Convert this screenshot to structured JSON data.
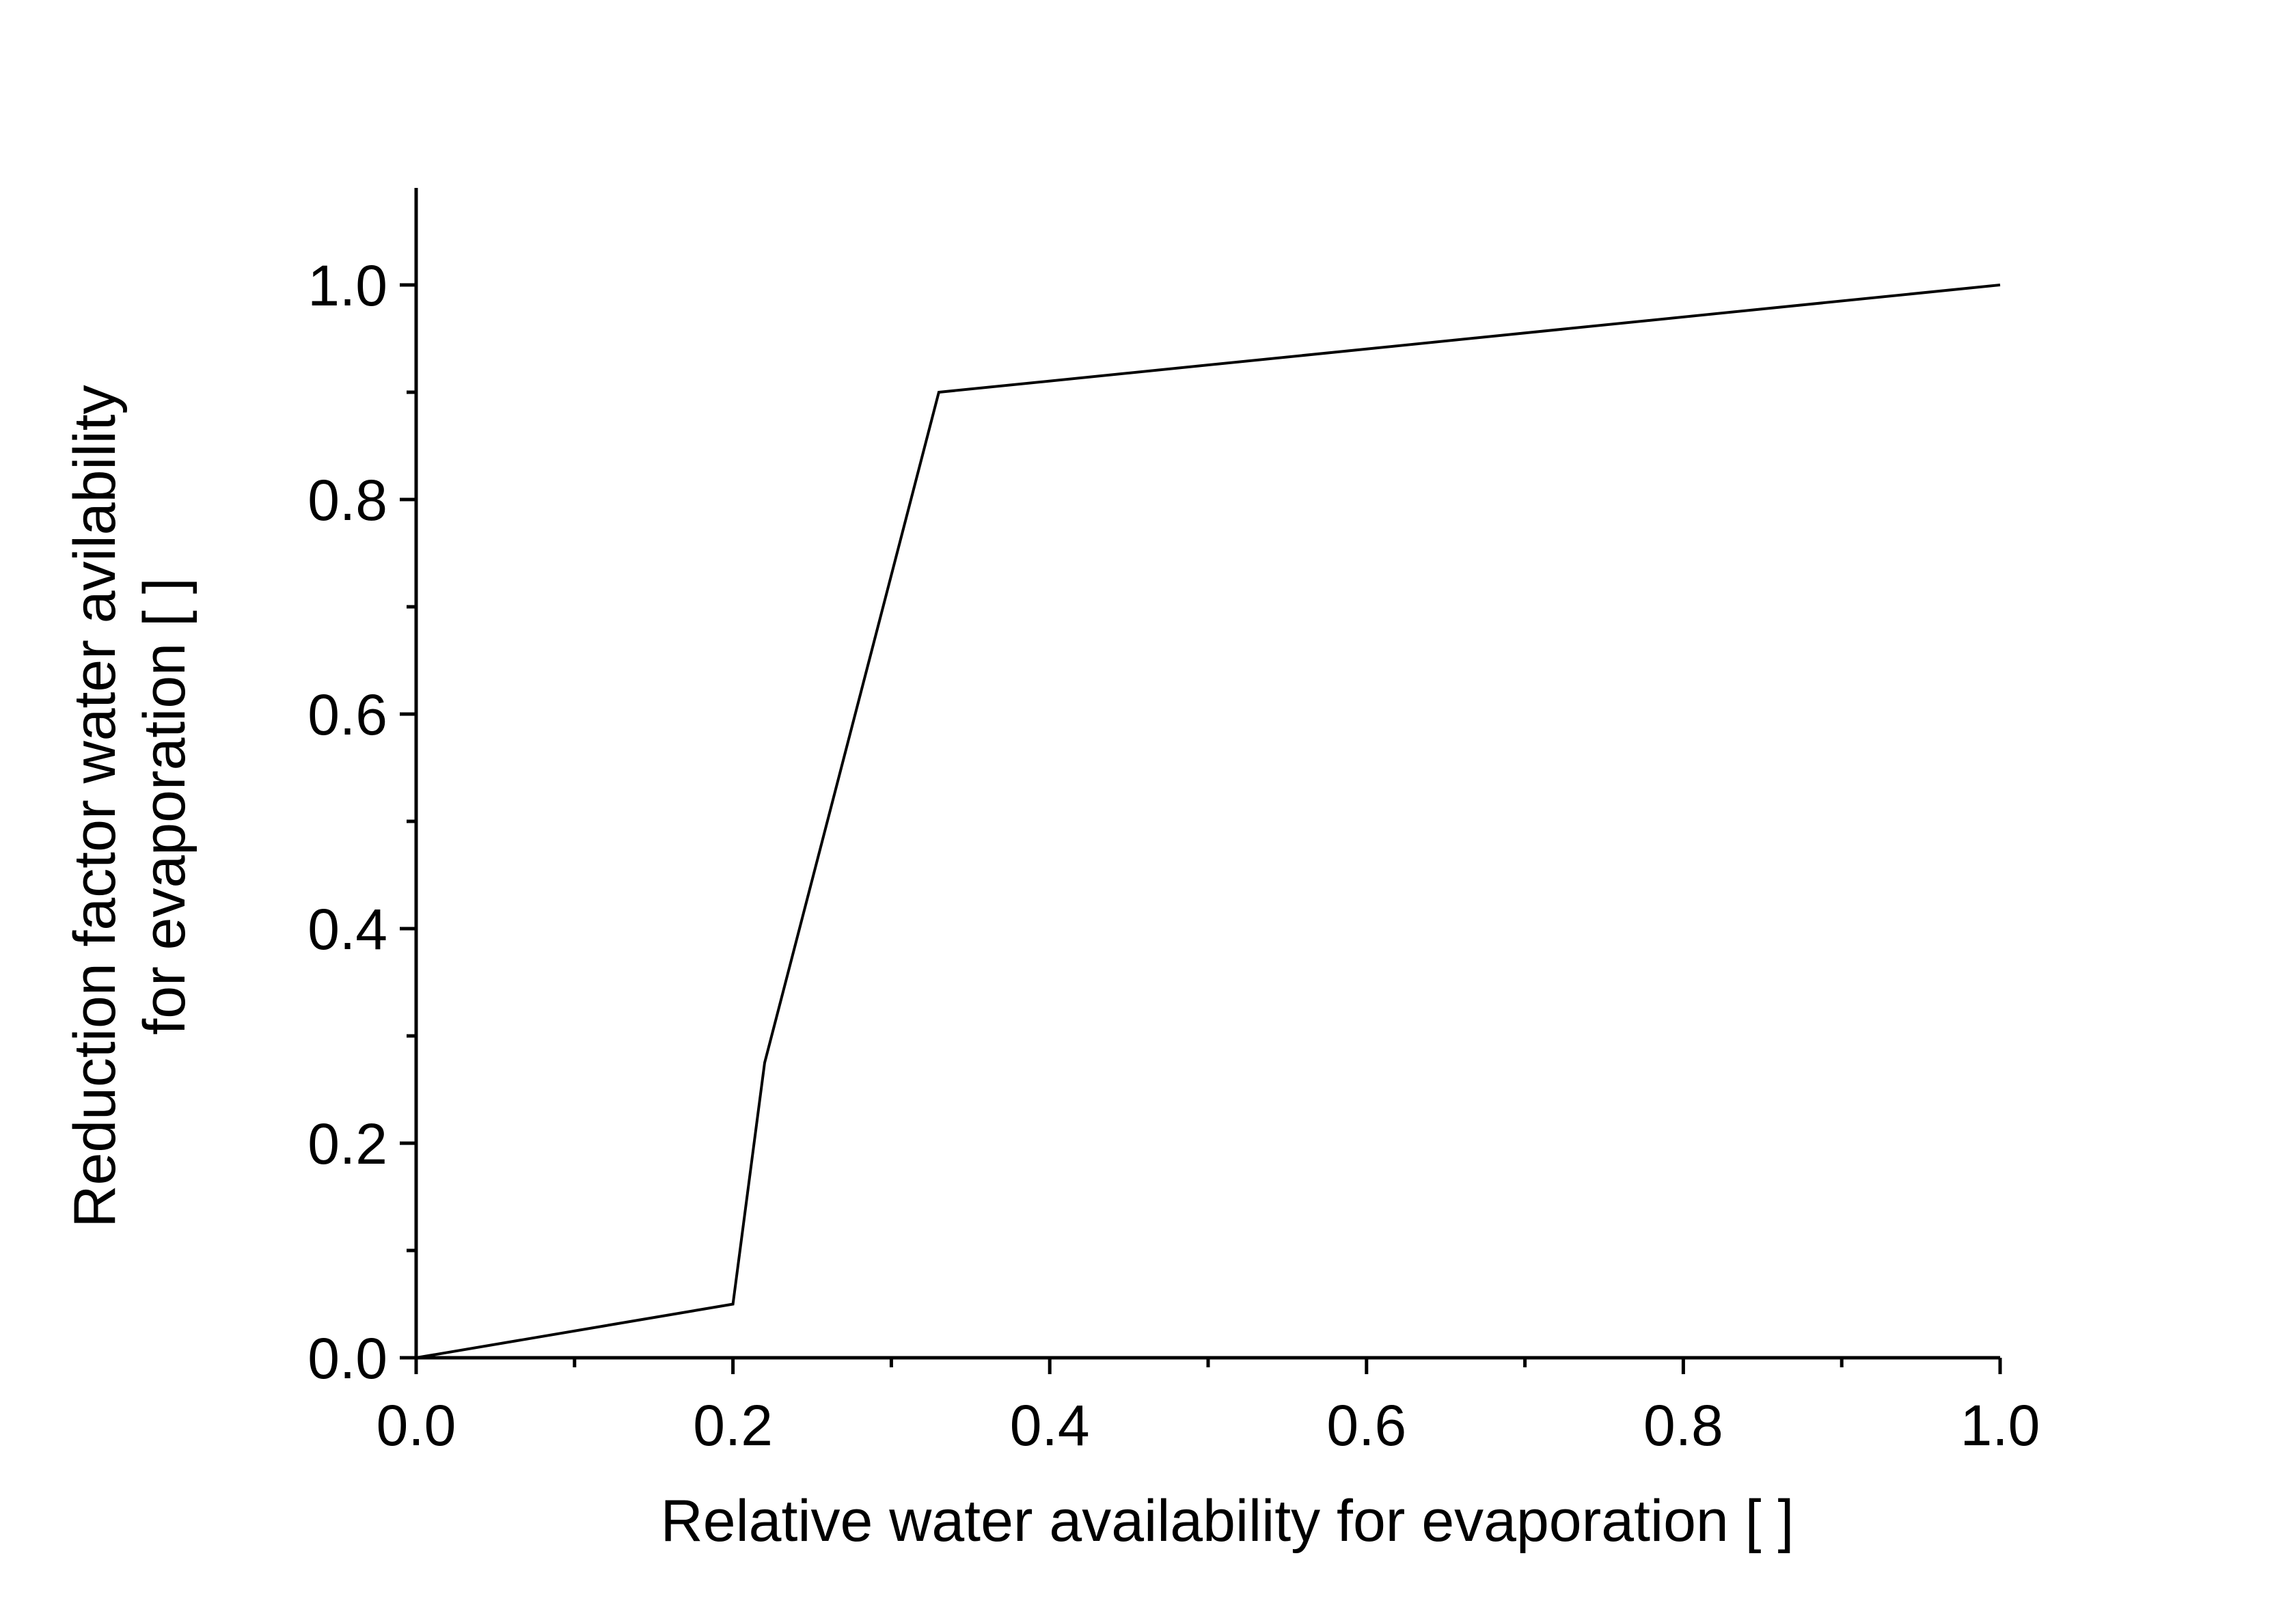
{
  "chart_data": {
    "type": "line",
    "title": "",
    "xlabel": "Relative water availability for evaporation [ ]",
    "ylabel_lines": [
      "Reduction factor water avilability",
      "for evaporation [ ]"
    ],
    "xlim": [
      0.0,
      1.0
    ],
    "ylim": [
      0.0,
      1.09
    ],
    "x_ticks": [
      "0.0",
      "0.2",
      "0.4",
      "0.6",
      "0.8",
      "1.0"
    ],
    "y_ticks": [
      "0.0",
      "0.2",
      "0.4",
      "0.6",
      "0.8",
      "1.0"
    ],
    "x_minor_step": 0.1,
    "y_minor_step": 0.1,
    "grid": false,
    "legend": "none",
    "series": [
      {
        "x": [
          0.0,
          0.2,
          0.22,
          0.33,
          1.0
        ],
        "y": [
          0.0,
          0.05,
          0.275,
          0.9,
          1.0
        ]
      }
    ],
    "colors": {
      "line": "#000000",
      "axis": "#000000",
      "background": "#ffffff"
    }
  }
}
